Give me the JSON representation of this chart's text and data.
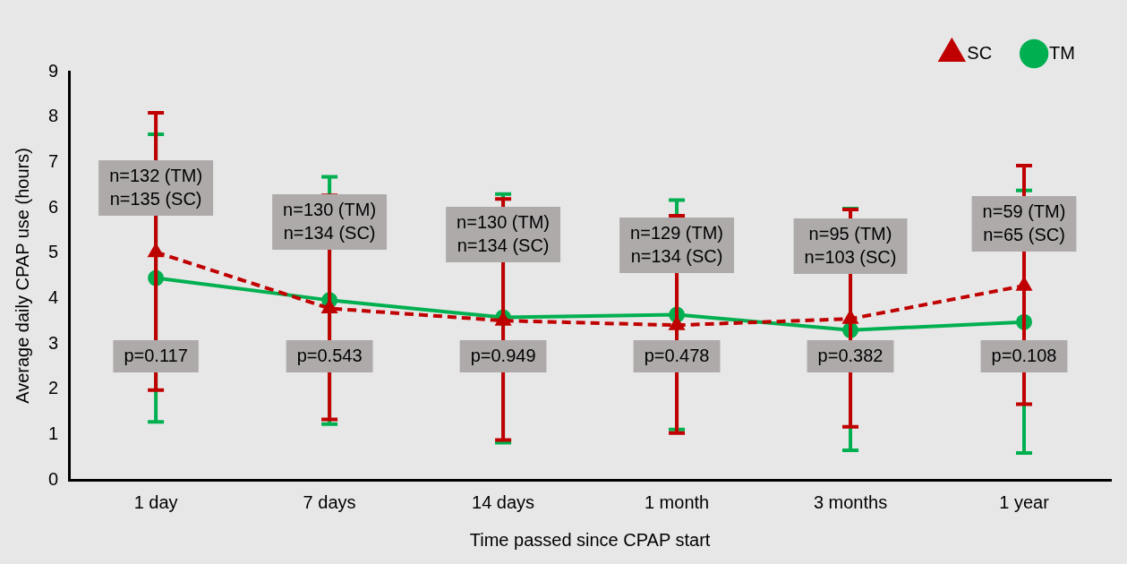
{
  "chart_data": {
    "type": "line",
    "xlabel": "Time passed since CPAP start",
    "ylabel": "Average daily CPAP use (hours)",
    "categories": [
      "1 day",
      "7 days",
      "14 days",
      "1 month",
      "3 months",
      "1 year"
    ],
    "series": [
      {
        "name": "TM",
        "color": "#00b050",
        "marker": "circle",
        "line_style": "solid",
        "values": [
          4.45,
          3.96,
          3.58,
          3.64,
          3.3,
          3.48
        ],
        "errors": [
          [
            1.28,
            7.62
          ],
          [
            1.23,
            6.68
          ],
          [
            0.82,
            6.3
          ],
          [
            1.11,
            6.17
          ],
          [
            0.65,
            5.98
          ],
          [
            0.59,
            6.38
          ]
        ]
      },
      {
        "name": "SC",
        "color": "#c00000",
        "marker": "triangle",
        "line_style": "dashed",
        "values": [
          5.02,
          3.78,
          3.51,
          3.41,
          3.55,
          4.28
        ],
        "errors": [
          [
            1.98,
            8.09
          ],
          [
            1.33,
            6.27
          ],
          [
            0.88,
            6.19
          ],
          [
            1.03,
            5.82
          ],
          [
            1.17,
            5.96
          ],
          [
            1.67,
            6.93
          ]
        ]
      }
    ],
    "ylim": [
      0,
      9
    ],
    "yticks": [
      0,
      1,
      2,
      3,
      4,
      5,
      6,
      7,
      8,
      9
    ],
    "grid": false,
    "legend": "top right",
    "annotations": [
      "n=132 (TM)\nn=135 (SC)",
      "n=130 (TM)\nn=134 (SC)",
      "n=130 (TM)\nn=134 (SC)",
      "n=129 (TM)\nn=134 (SC)",
      "n=95 (TM)\nn=103 (SC)",
      "n=59 (TM)\nn=65 (SC)",
      "p=0.117",
      "p=0.543",
      "p=0.949",
      "p=0.478",
      "p=0.382",
      "p=0.108"
    ]
  }
}
